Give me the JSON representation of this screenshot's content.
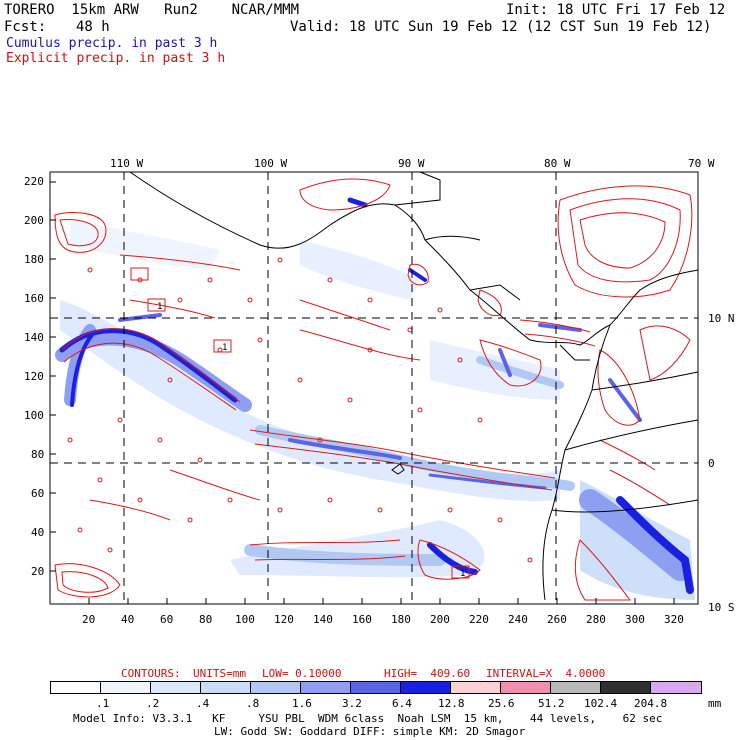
{
  "header": {
    "title": "TORERO  15km ARW   Run2    NCAR/MMM",
    "init": "Init: 18 UTC Fri 17 Feb 12",
    "fcst_label": "Fcst:",
    "fcst_value": "48 h",
    "valid": "Valid: 18 UTC Sun 19 Feb 12 (12 CST Sun 19 Feb 12)",
    "line_cumulus": "Cumulus precip. in past 3 h",
    "line_explicit": "Explicit precip. in past 3 h"
  },
  "axes": {
    "top_lon_labels": [
      "110 W",
      "100 W",
      "90 W",
      "80 W",
      "70 W"
    ],
    "right_lat_labels": [
      "10 N",
      "0",
      "10 S"
    ],
    "y_ticks": [
      "220",
      "200",
      "180",
      "160",
      "140",
      "120",
      "100",
      "80",
      "60",
      "40",
      "20"
    ],
    "x_ticks": [
      "20",
      "40",
      "60",
      "80",
      "100",
      "120",
      "140",
      "160",
      "180",
      "200",
      "220",
      "240",
      "260",
      "280",
      "300",
      "320"
    ]
  },
  "contours_line": {
    "contours": "CONTOURS:",
    "units": "UNITS=mm",
    "low": "LOW= 0.10000",
    "high": "HIGH=  409.60",
    "interval": "INTERVAL=X  4.0000"
  },
  "legend": {
    "labels": [
      ".1",
      ".2",
      ".4",
      ".8",
      "1.6",
      "3.2",
      "6.4",
      "12.8",
      "25.6",
      "51.2",
      "102.4",
      "204.8"
    ],
    "unit": "mm",
    "colors": [
      "#ffffff",
      "#f0f4ff",
      "#dde8ff",
      "#c8dcf8",
      "#b2c8f4",
      "#8e9ef0",
      "#5a64e6",
      "#1a20e0",
      "#ffd0d4",
      "#f090b0",
      "#b8b8b8",
      "#303030",
      "#d8a8f0"
    ]
  },
  "footer": {
    "line1": "Model Info: V3.3.1   KF     YSU PBL  WDM 6class  Noah LSM  15 km,    44 levels,    62 sec",
    "line2": "LW: Godd SW: Goddard DIFF: simple KM: 2D Smagor"
  },
  "map_labels": [
    "1",
    "1",
    "1"
  ],
  "colors": {
    "cumulus_blue": "#1a1a9e",
    "explicit_red": "#d21010",
    "contour_red": "#e01818",
    "precip_blue": "#2a34e4"
  }
}
